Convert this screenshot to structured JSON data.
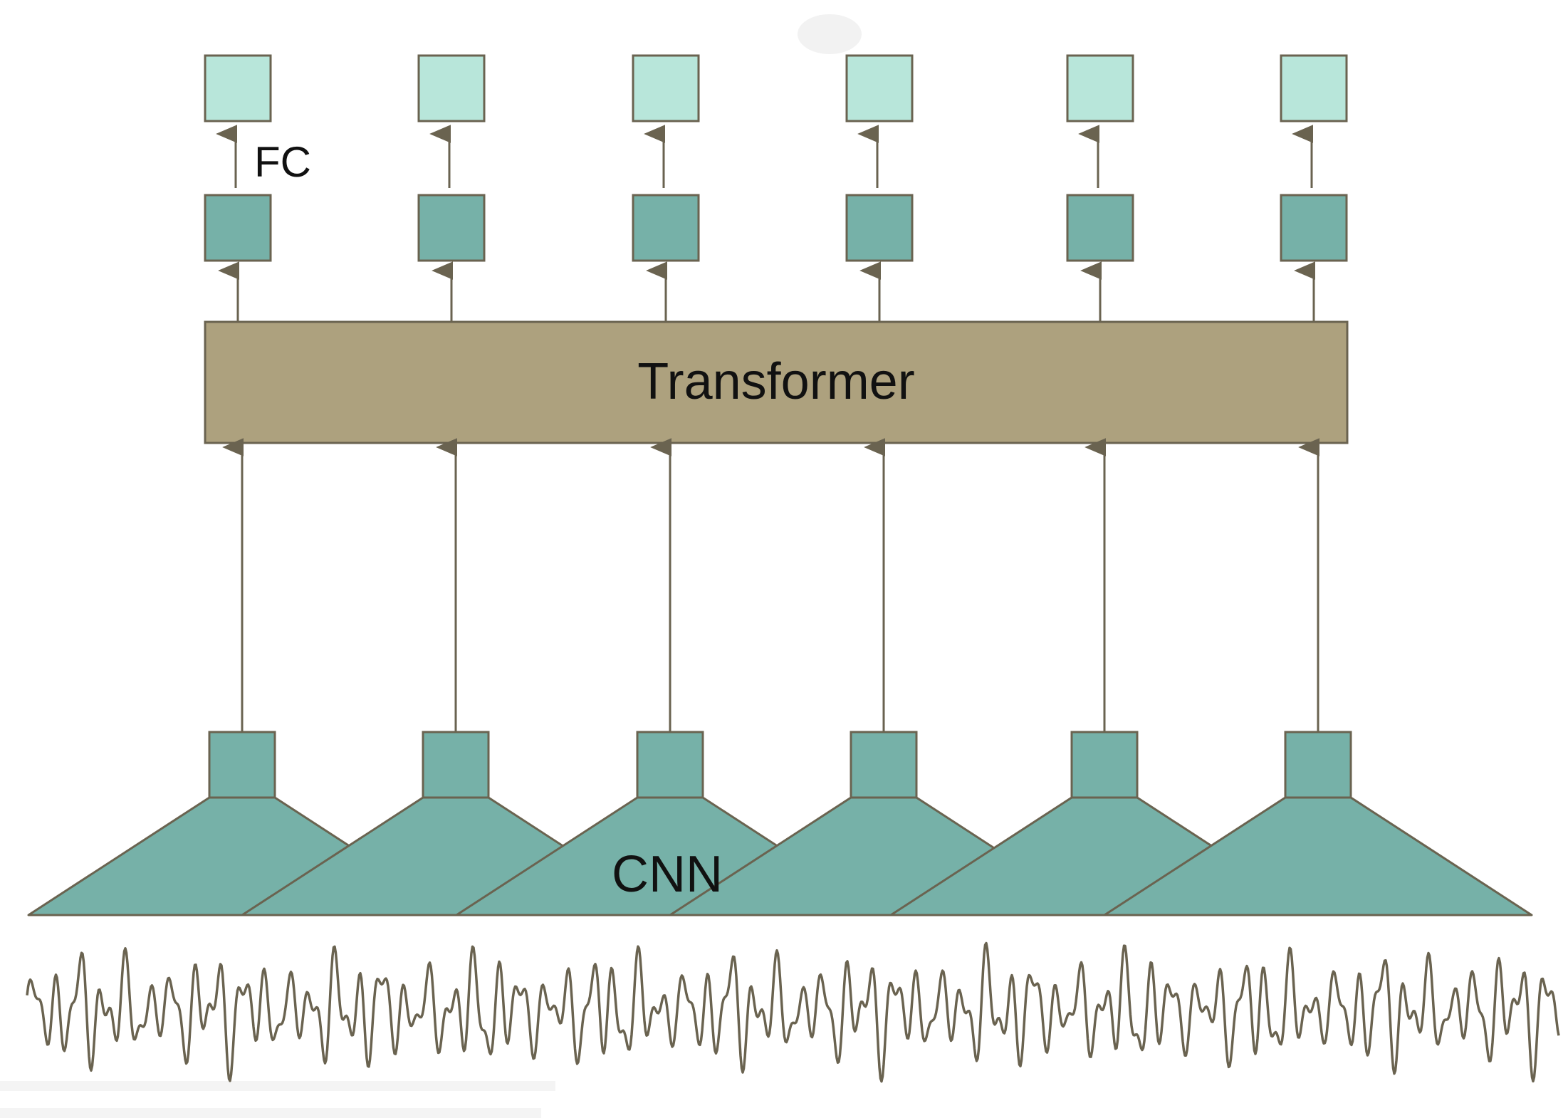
{
  "labels": {
    "fc": "FC",
    "transformer": "Transformer",
    "cnn": "CNN"
  },
  "colors": {
    "background": "#ffffff",
    "output_box": "#b8e6da",
    "hidden_box": "#76b1a8",
    "transformer": "#ada17e",
    "cnn": "#76b1a8",
    "stroke": "#6a6350",
    "waveform": "#6a6350",
    "text": "#111111"
  },
  "columns": 6,
  "icons": {
    "arrow": "upward-arrow",
    "waveform": "audio-waveform"
  }
}
